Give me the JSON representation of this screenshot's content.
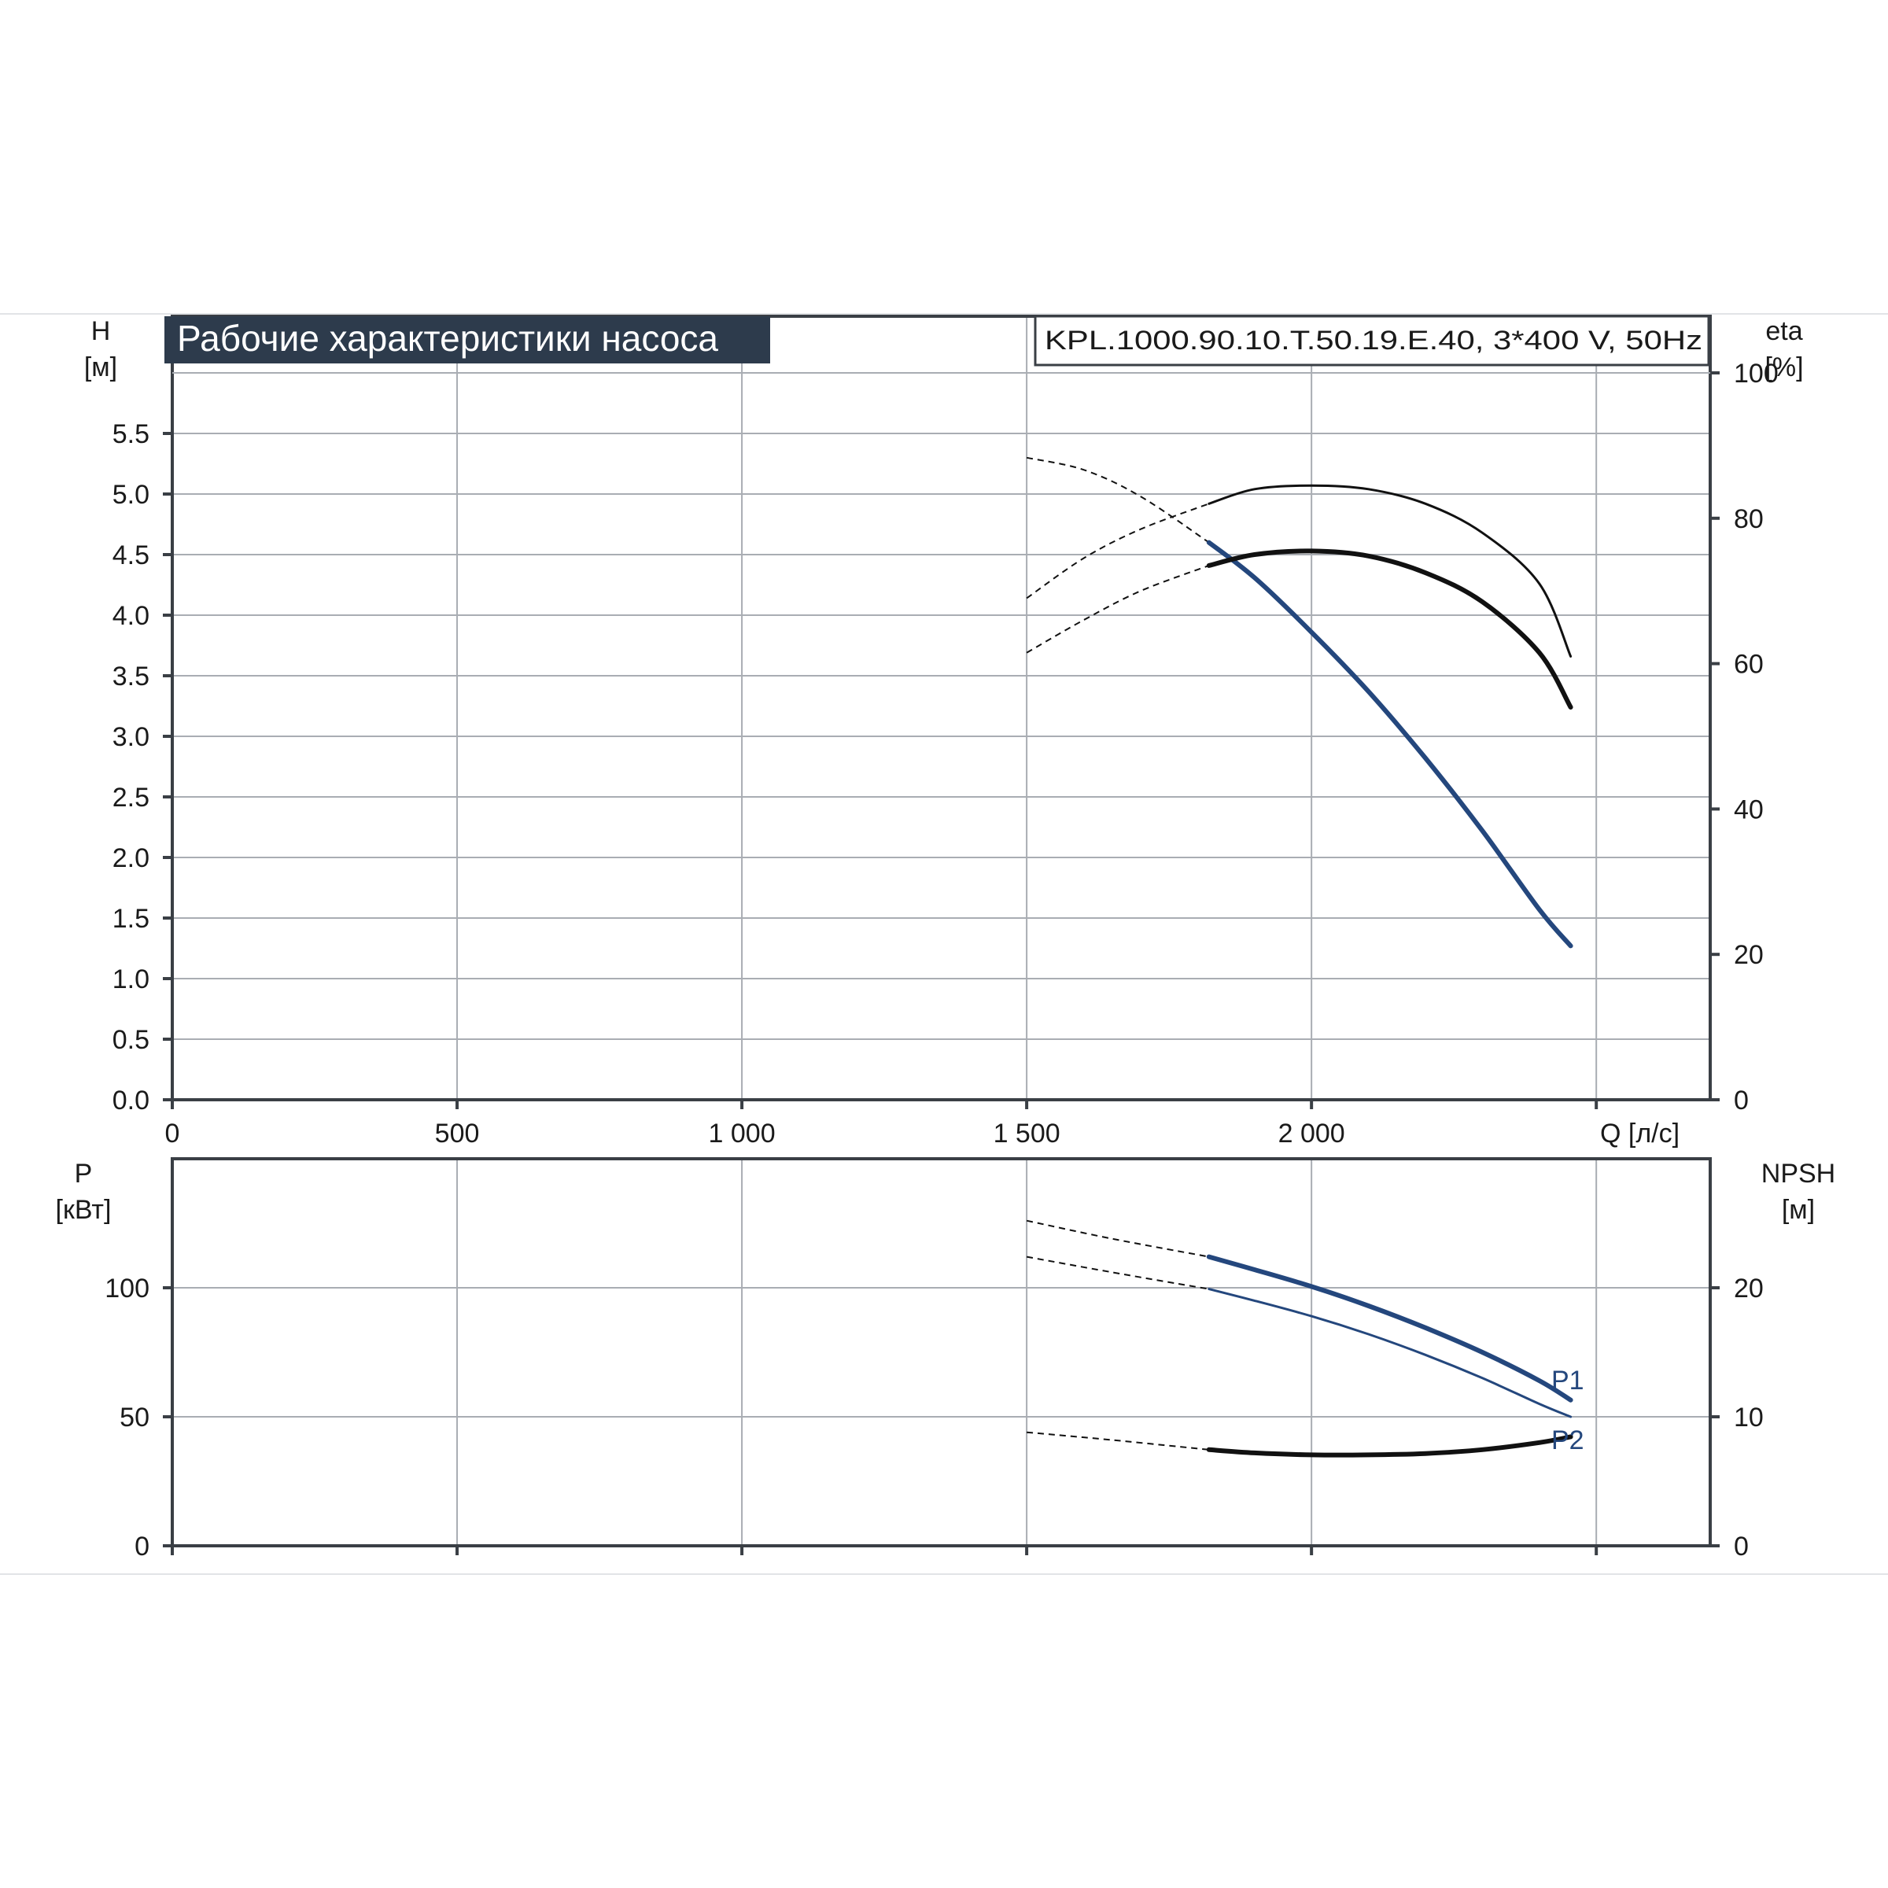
{
  "header": {
    "title": "Рабочие характеристики насоса",
    "model": "KPL.1000.90.10.T.50.19.E.40, 3*400 V, 50Hz"
  },
  "colors": {
    "title_bg": "#2d3b4c",
    "blue_curve": "#24477d",
    "black_curve": "#111111",
    "grid": "#a9adb3",
    "frame": "#3a3f45"
  },
  "chart_data": [
    {
      "type": "line",
      "name": "upper-panel",
      "xlabel": "Q [л/с]",
      "x_ticks": [
        "0",
        "500",
        "1 000",
        "1 500",
        "2 000"
      ],
      "xlim": [
        0,
        2700
      ],
      "ylabel_left": {
        "name": "H",
        "unit": "[м]"
      },
      "ylim_left": [
        0,
        6
      ],
      "y_ticks_left": [
        "0.0",
        "0.5",
        "1.0",
        "1.5",
        "2.0",
        "2.5",
        "3.0",
        "3.5",
        "4.0",
        "4.5",
        "5.0",
        "5.5"
      ],
      "ylabel_right": {
        "name": "eta",
        "unit": "[%]"
      },
      "ylim_right": [
        0,
        100
      ],
      "y_ticks_right": [
        "0",
        "20",
        "40",
        "60",
        "80",
        "100"
      ],
      "grid": true,
      "series": [
        {
          "axis": "left",
          "color": "#24477d",
          "width": 6,
          "dashed": {
            "x": [
              1500,
              1600,
              1700,
              1820
            ],
            "y": [
              5.3,
              5.2,
              4.98,
              4.6
            ]
          },
          "solid": {
            "x": [
              1820,
              1900,
              2000,
              2100,
              2200,
              2300,
              2400,
              2455
            ],
            "y": [
              4.6,
              4.31,
              3.86,
              3.37,
              2.82,
              2.22,
              1.57,
              1.27
            ]
          }
        },
        {
          "axis": "right",
          "color": "#111111",
          "width": 3,
          "dashed": {
            "x": [
              1500,
              1600,
              1700,
              1820
            ],
            "y": [
              69,
              74.5,
              78.5,
              82
            ]
          },
          "solid": {
            "x": [
              1820,
              1900,
              2000,
              2100,
              2200,
              2300,
              2400,
              2455
            ],
            "y": [
              82,
              84,
              84.5,
              84,
              82,
              78,
              71,
              61
            ]
          }
        },
        {
          "axis": "right",
          "color": "#111111",
          "width": 6,
          "dashed": {
            "x": [
              1500,
              1600,
              1700,
              1820
            ],
            "y": [
              61.5,
              66,
              70,
              73.5
            ]
          },
          "solid": {
            "x": [
              1820,
              1900,
              2000,
              2100,
              2200,
              2300,
              2400,
              2455
            ],
            "y": [
              73.5,
              75,
              75.5,
              74.8,
              72.5,
              68.5,
              61.5,
              54
            ]
          }
        }
      ]
    },
    {
      "type": "line",
      "name": "lower-panel",
      "xlim": [
        0,
        2700
      ],
      "ylabel_left": {
        "name": "P",
        "unit": "[кВт]"
      },
      "ylim_left": [
        0,
        150
      ],
      "y_ticks_left": [
        "0",
        "50",
        "100"
      ],
      "ylabel_right": {
        "name": "NPSH",
        "unit": "[м]"
      },
      "ylim_right": [
        0,
        30
      ],
      "y_ticks_right": [
        "0",
        "10",
        "20"
      ],
      "grid": true,
      "series": [
        {
          "name": "P1",
          "axis": "left",
          "color": "#24477d",
          "width": 6,
          "dashed": {
            "x": [
              1500,
              1650,
              1820
            ],
            "y": [
              126,
              119,
              112
            ]
          },
          "solid": {
            "x": [
              1820,
              1900,
              2000,
              2100,
              2200,
              2300,
              2400,
              2455
            ],
            "y": [
              112,
              107,
              100.5,
              93,
              84.5,
              75,
              64,
              56.5
            ]
          }
        },
        {
          "name": "P2",
          "axis": "left",
          "color": "#24477d",
          "width": 3,
          "dashed": {
            "x": [
              1500,
              1650,
              1820
            ],
            "y": [
              112,
              106,
              99.5
            ]
          },
          "solid": {
            "x": [
              1820,
              1900,
              2000,
              2100,
              2200,
              2300,
              2400,
              2455
            ],
            "y": [
              99.5,
              95,
              89,
              82,
              74,
              65,
              55,
              50
            ]
          }
        },
        {
          "axis": "right",
          "color": "#111111",
          "width": 6,
          "dashed": {
            "x": [
              1500,
              1650,
              1820
            ],
            "y": [
              8.8,
              8.2,
              7.45
            ]
          },
          "solid": {
            "x": [
              1820,
              1900,
              2000,
              2100,
              2200,
              2300,
              2400,
              2455
            ],
            "y": [
              7.45,
              7.2,
              7.05,
              7.05,
              7.15,
              7.45,
              8,
              8.45
            ]
          }
        }
      ]
    }
  ]
}
